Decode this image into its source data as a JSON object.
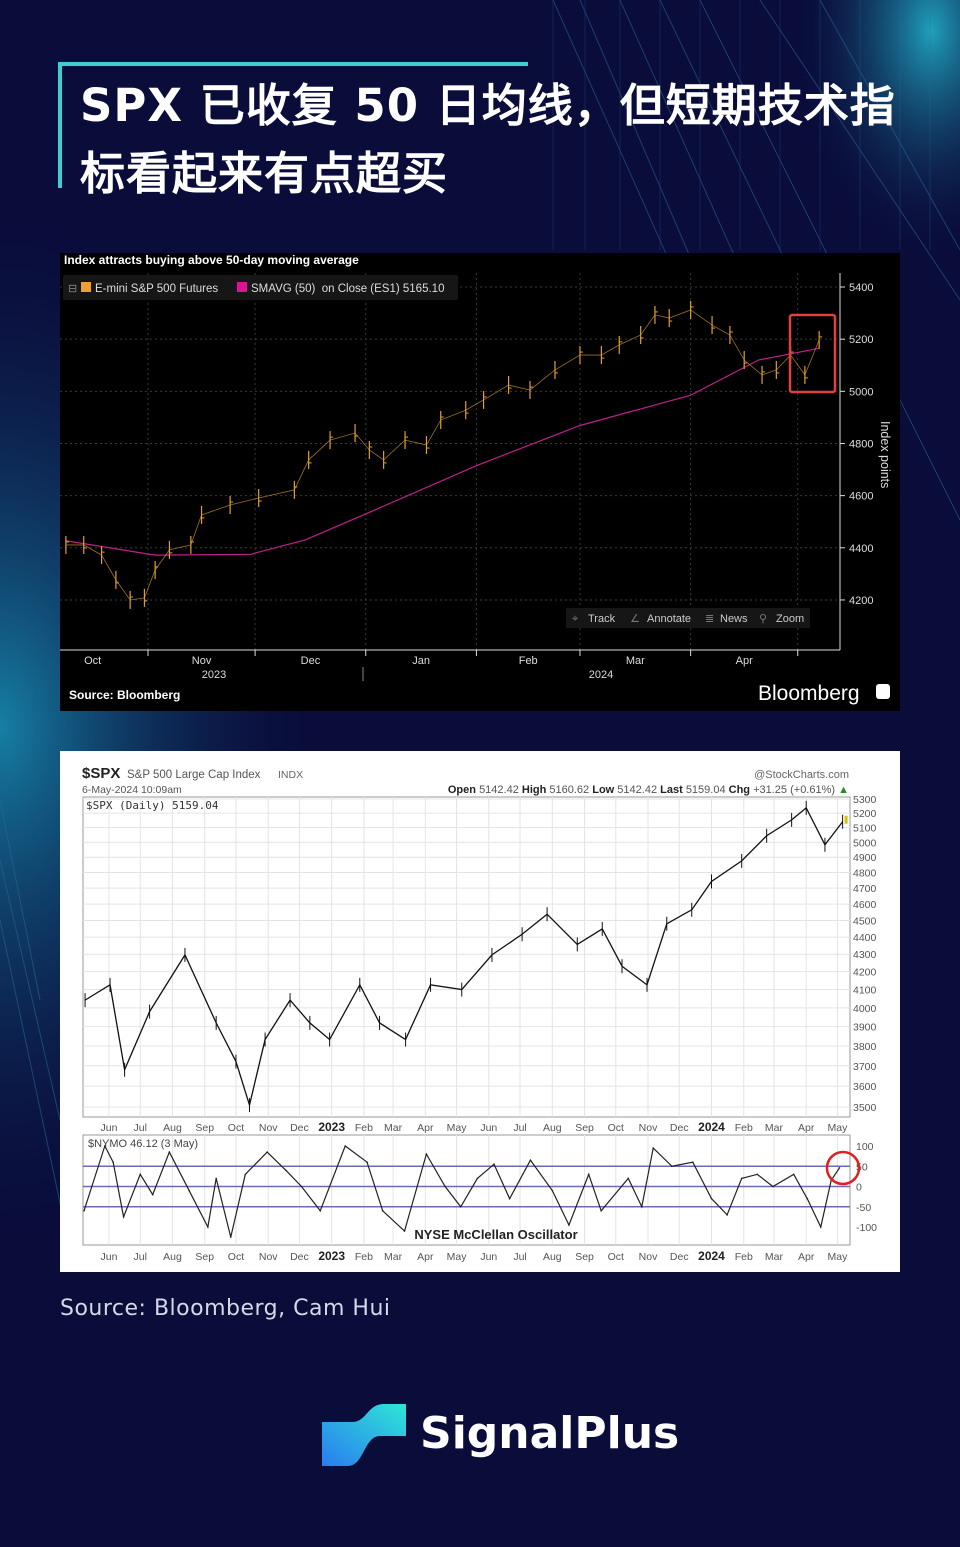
{
  "header": {
    "title": "SPX 已收复 50 日均线，但短期技术指标看起来有点超买"
  },
  "colors": {
    "background": "#0a0c3a",
    "accent": "#3ccfd2",
    "price_bloomberg": "#e0a030",
    "sma": "#c0208a",
    "highlight": "#e03030",
    "oscillator_lines": "#6a6ab8"
  },
  "chart_data": [
    {
      "type": "line",
      "title": "Index attracts buying above 50-day moving average",
      "ylabel": "Index points",
      "ylim": [
        4100,
        5450
      ],
      "yticks": [
        4200,
        4400,
        4600,
        4800,
        5000,
        5200,
        5400
      ],
      "grid": true,
      "legend_placement": "top-left",
      "x_month_labels": [
        "Oct",
        "Nov",
        "Dec",
        "Jan",
        "Feb",
        "Mar",
        "Apr"
      ],
      "x_year_labels": [
        "2023",
        "2024"
      ],
      "legend": {
        "series1": "E-mini S&P 500 Futures",
        "series2": "SMAVG (50)  on Close (ES1) 5165.10"
      },
      "toolbar": {
        "track": "Track",
        "annotate": "Annotate",
        "news": "News",
        "zoom": "Zoom"
      },
      "source": "Source: Bloomberg",
      "brand": "Bloomberg",
      "series": [
        {
          "name": "E-mini S&P 500 Futures",
          "style": "ohlc",
          "points": [
            [
              "2023-10-09",
              4411
            ],
            [
              "2023-10-14",
              4411
            ],
            [
              "2023-10-19",
              4372
            ],
            [
              "2023-10-23",
              4277
            ],
            [
              "2023-10-27",
              4200
            ],
            [
              "2023-10-31",
              4208
            ],
            [
              "2023-11-03",
              4315
            ],
            [
              "2023-11-07",
              4392
            ],
            [
              "2023-11-13",
              4411
            ],
            [
              "2023-11-16",
              4526
            ],
            [
              "2023-11-24",
              4564
            ],
            [
              "2023-12-02",
              4591
            ],
            [
              "2023-12-12",
              4622
            ],
            [
              "2023-12-16",
              4737
            ],
            [
              "2023-12-22",
              4813
            ],
            [
              "2023-12-29",
              4840
            ],
            [
              "2024-01-02",
              4775
            ],
            [
              "2024-01-06",
              4737
            ],
            [
              "2024-01-12",
              4813
            ],
            [
              "2024-01-18",
              4794
            ],
            [
              "2024-01-22",
              4890
            ],
            [
              "2024-01-29",
              4928
            ],
            [
              "2024-02-03",
              4967
            ],
            [
              "2024-02-10",
              5024
            ],
            [
              "2024-02-16",
              5005
            ],
            [
              "2024-02-23",
              5082
            ],
            [
              "2024-03-01",
              5139
            ],
            [
              "2024-03-07",
              5139
            ],
            [
              "2024-03-12",
              5178
            ],
            [
              "2024-03-18",
              5216
            ],
            [
              "2024-03-22",
              5293
            ],
            [
              "2024-03-26",
              5281
            ],
            [
              "2024-04-01",
              5312
            ],
            [
              "2024-04-07",
              5254
            ],
            [
              "2024-04-12",
              5216
            ],
            [
              "2024-04-16",
              5120
            ],
            [
              "2024-04-21",
              5063
            ],
            [
              "2024-04-25",
              5082
            ],
            [
              "2024-04-29",
              5139
            ],
            [
              "2024-05-03",
              5063
            ],
            [
              "2024-05-07",
              5197
            ]
          ]
        },
        {
          "name": "SMAVG (50)  on Close (ES1)",
          "style": "line",
          "points": [
            [
              "2023-10-09",
              4427
            ],
            [
              "2023-11-03",
              4372
            ],
            [
              "2023-11-30",
              4375
            ],
            [
              "2023-12-01",
              4380
            ],
            [
              "2023-12-15",
              4430
            ],
            [
              "2024-01-01",
              4530
            ],
            [
              "2024-02-01",
              4715
            ],
            [
              "2024-03-01",
              4869
            ],
            [
              "2024-04-01",
              4985
            ],
            [
              "2024-04-20",
              5120
            ],
            [
              "2024-05-07",
              5165
            ]
          ]
        }
      ],
      "annotations": [
        {
          "type": "box",
          "from": "2024-04-29",
          "to": "2024-05-11",
          "range": [
            4995,
            5295
          ]
        }
      ]
    },
    {
      "type": "line",
      "symbol": "$SPX",
      "name": "S&P 500 Large Cap Index",
      "exchange": "INDX",
      "datetime": "6-May-2024 10:09am",
      "ohlc": {
        "open_label": "Open",
        "open": "5142.42",
        "high_label": "High",
        "high": "5160.62",
        "low_label": "Low",
        "low": "5142.42",
        "last_label": "Last",
        "last": "5159.04",
        "chg_label": "Chg",
        "chg": "+31.25 (+0.61%)",
        "arrow": "▲"
      },
      "watermark": "@StockCharts.com",
      "legend": "$SPX (Daily) 5159.04",
      "scale": "log",
      "ylim": [
        3500,
        5300
      ],
      "yticks": [
        3500,
        3600,
        3700,
        3800,
        3900,
        4000,
        4100,
        4200,
        4300,
        4400,
        4500,
        4600,
        4700,
        4800,
        4900,
        5000,
        5100,
        5200,
        5300
      ],
      "grid": true,
      "x_month_labels": [
        "Jun",
        "Jul",
        "Aug",
        "Sep",
        "Oct",
        "Nov",
        "Dec",
        "2023",
        "Feb",
        "Mar",
        "Apr",
        "May",
        "Jun",
        "Jul",
        "Aug",
        "Sep",
        "Oct",
        "Nov",
        "Dec",
        "2024",
        "Feb",
        "Mar",
        "Apr",
        "May"
      ],
      "points": [
        [
          "2022-05-09",
          4042
        ],
        [
          "2022-06-02",
          4126
        ],
        [
          "2022-06-16",
          3680
        ],
        [
          "2022-07-10",
          3980
        ],
        [
          "2022-08-13",
          4296
        ],
        [
          "2022-09-12",
          3920
        ],
        [
          "2022-10-01",
          3721
        ],
        [
          "2022-10-14",
          3509
        ],
        [
          "2022-10-29",
          3833
        ],
        [
          "2022-11-22",
          4042
        ],
        [
          "2022-12-11",
          3920
        ],
        [
          "2022-12-30",
          3833
        ],
        [
          "2023-01-28",
          4126
        ],
        [
          "2023-02-16",
          3920
        ],
        [
          "2023-03-13",
          3833
        ],
        [
          "2023-04-06",
          4126
        ],
        [
          "2023-05-06",
          4100
        ],
        [
          "2023-06-04",
          4296
        ],
        [
          "2023-07-03",
          4417
        ],
        [
          "2023-07-27",
          4538
        ],
        [
          "2023-08-25",
          4357
        ],
        [
          "2023-09-18",
          4449
        ],
        [
          "2023-10-07",
          4231
        ],
        [
          "2023-10-31",
          4126
        ],
        [
          "2023-11-19",
          4480
        ],
        [
          "2023-12-13",
          4565
        ],
        [
          "2024-01-01",
          4743
        ],
        [
          "2024-01-30",
          4876
        ],
        [
          "2024-02-23",
          5044
        ],
        [
          "2024-03-18",
          5153
        ],
        [
          "2024-04-01",
          5237
        ],
        [
          "2024-04-19",
          4983
        ],
        [
          "2024-05-06",
          5140
        ]
      ]
    },
    {
      "type": "line",
      "title": "NYSE McClellan Oscillator",
      "legend": "$NYMO 46.12 (3 May)",
      "ylim": [
        -135,
        125
      ],
      "yticks": [
        100,
        50,
        0,
        -50,
        -100
      ],
      "reference_lines": [
        50,
        0,
        -50
      ],
      "x_month_labels": [
        "Jun",
        "Jul",
        "Aug",
        "Sep",
        "Oct",
        "Nov",
        "Dec",
        "2023",
        "Feb",
        "Mar",
        "Apr",
        "May",
        "Jun",
        "Jul",
        "Aug",
        "Sep",
        "Oct",
        "Nov",
        "Dec",
        "2024",
        "Feb",
        "Mar",
        "Apr",
        "May"
      ],
      "points": [
        [
          "2022-05-08",
          -60
        ],
        [
          "2022-05-28",
          100
        ],
        [
          "2022-06-05",
          60
        ],
        [
          "2022-06-15",
          -75
        ],
        [
          "2022-07-01",
          30
        ],
        [
          "2022-07-13",
          -20
        ],
        [
          "2022-07-29",
          85
        ],
        [
          "2022-08-17",
          -10
        ],
        [
          "2022-09-04",
          -100
        ],
        [
          "2022-09-12",
          20
        ],
        [
          "2022-09-26",
          -125
        ],
        [
          "2022-10-10",
          30
        ],
        [
          "2022-10-31",
          85
        ],
        [
          "2022-11-18",
          40
        ],
        [
          "2022-12-03",
          0
        ],
        [
          "2022-12-21",
          -60
        ],
        [
          "2023-01-14",
          100
        ],
        [
          "2023-02-04",
          60
        ],
        [
          "2023-02-19",
          -60
        ],
        [
          "2023-03-12",
          -110
        ],
        [
          "2023-04-02",
          80
        ],
        [
          "2023-04-20",
          0
        ],
        [
          "2023-05-05",
          -50
        ],
        [
          "2023-05-21",
          20
        ],
        [
          "2023-06-06",
          55
        ],
        [
          "2023-06-21",
          -30
        ],
        [
          "2023-07-11",
          65
        ],
        [
          "2023-08-01",
          -10
        ],
        [
          "2023-08-17",
          -95
        ],
        [
          "2023-09-05",
          30
        ],
        [
          "2023-09-17",
          -60
        ],
        [
          "2023-10-13",
          20
        ],
        [
          "2023-10-26",
          -50
        ],
        [
          "2023-11-06",
          95
        ],
        [
          "2023-11-24",
          50
        ],
        [
          "2023-12-14",
          60
        ],
        [
          "2024-01-01",
          -30
        ],
        [
          "2024-01-16",
          -70
        ],
        [
          "2024-01-30",
          20
        ],
        [
          "2024-02-14",
          30
        ],
        [
          "2024-02-29",
          0
        ],
        [
          "2024-03-20",
          30
        ],
        [
          "2024-04-02",
          -30
        ],
        [
          "2024-04-15",
          -100
        ],
        [
          "2024-04-25",
          15
        ],
        [
          "2024-05-03",
          46.12
        ]
      ],
      "annotations": [
        {
          "type": "circle",
          "date": "2024-05-03",
          "value": 46.12
        }
      ]
    }
  ],
  "footer": {
    "source": "Source: Bloomberg, Cam Hui",
    "brand": "SignalPlus"
  }
}
